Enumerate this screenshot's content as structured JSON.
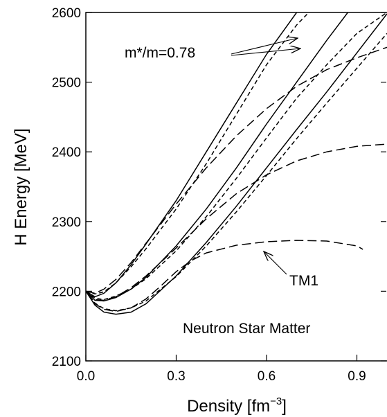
{
  "chart_data": {
    "type": "line",
    "title": "",
    "xlabel": "Density [fm",
    "xlabel_sup": "−3",
    "xlabel_end": "]",
    "ylabel": "H Energy [MeV]",
    "xlim": [
      0.0,
      1.0
    ],
    "ylim": [
      2100,
      2600
    ],
    "xticks": [
      "0.0",
      "0.3",
      "0.6",
      "0.9"
    ],
    "xtick_values": [
      0.0,
      0.3,
      0.6,
      0.9
    ],
    "yticks": [
      "2100",
      "2200",
      "2300",
      "2400",
      "2500",
      "2600"
    ],
    "ytick_values": [
      2100,
      2200,
      2300,
      2400,
      2500,
      2600
    ],
    "grid": false,
    "annotations": {
      "mstar": "m*/m=0.78",
      "tm1": "TM1",
      "matter": "Neutron Star Matter"
    },
    "series": [
      {
        "style": "solid",
        "x": [
          0.0,
          0.03,
          0.06,
          0.1,
          0.15,
          0.2,
          0.3,
          0.4,
          0.5,
          0.6,
          0.7
        ],
        "y": [
          2200,
          2192,
          2197,
          2212,
          2238,
          2268,
          2330,
          2400,
          2470,
          2540,
          2600
        ]
      },
      {
        "style": "solid",
        "x": [
          0.0,
          0.03,
          0.06,
          0.1,
          0.15,
          0.2,
          0.3,
          0.4,
          0.5,
          0.6,
          0.7,
          0.8,
          0.87
        ],
        "y": [
          2200,
          2187,
          2186,
          2191,
          2203,
          2220,
          2265,
          2318,
          2377,
          2440,
          2500,
          2560,
          2600
        ]
      },
      {
        "style": "solid",
        "x": [
          0.0,
          0.03,
          0.06,
          0.1,
          0.15,
          0.2,
          0.3,
          0.4,
          0.5,
          0.6,
          0.7,
          0.8,
          0.9,
          1.0
        ],
        "y": [
          2200,
          2180,
          2170,
          2167,
          2170,
          2182,
          2222,
          2270,
          2322,
          2377,
          2432,
          2486,
          2542,
          2598
        ]
      },
      {
        "style": "short-dash",
        "x": [
          0.0,
          0.03,
          0.06,
          0.1,
          0.15,
          0.2,
          0.3,
          0.4,
          0.5,
          0.6,
          0.7,
          0.74
        ],
        "y": [
          2200,
          2196,
          2199,
          2212,
          2235,
          2261,
          2318,
          2383,
          2454,
          2525,
          2582,
          2600
        ]
      },
      {
        "style": "short-dash",
        "x": [
          0.0,
          0.03,
          0.06,
          0.1,
          0.15,
          0.2,
          0.3,
          0.4,
          0.5,
          0.6,
          0.7,
          0.8,
          0.9,
          1.0
        ],
        "y": [
          2200,
          2190,
          2188,
          2193,
          2203,
          2218,
          2258,
          2307,
          2362,
          2420,
          2477,
          2525,
          2570,
          2600
        ]
      },
      {
        "style": "short-dash",
        "x": [
          0.0,
          0.03,
          0.06,
          0.1,
          0.15,
          0.2,
          0.3,
          0.4,
          0.5,
          0.6,
          0.7,
          0.8,
          0.9,
          1.0
        ],
        "y": [
          2200,
          2183,
          2175,
          2172,
          2176,
          2186,
          2221,
          2265,
          2314,
          2366,
          2419,
          2470,
          2520,
          2570
        ]
      },
      {
        "style": "long-dash",
        "x": [
          0.0,
          0.03,
          0.06,
          0.1,
          0.15,
          0.2,
          0.3,
          0.4,
          0.5,
          0.6,
          0.7,
          0.8,
          0.9,
          1.0
        ],
        "y": [
          2200,
          2197,
          2203,
          2217,
          2241,
          2269,
          2325,
          2377,
          2423,
          2462,
          2494,
          2518,
          2535,
          2550
        ]
      },
      {
        "style": "long-dash",
        "x": [
          0.0,
          0.03,
          0.06,
          0.1,
          0.15,
          0.2,
          0.3,
          0.4,
          0.5,
          0.6,
          0.7,
          0.8,
          0.9,
          1.0
        ],
        "y": [
          2200,
          2188,
          2187,
          2192,
          2205,
          2222,
          2262,
          2304,
          2340,
          2367,
          2387,
          2400,
          2408,
          2411
        ]
      },
      {
        "style": "long-dash",
        "x": [
          0.0,
          0.03,
          0.06,
          0.1,
          0.15,
          0.2,
          0.25,
          0.3,
          0.35,
          0.4,
          0.5,
          0.6,
          0.7,
          0.8,
          0.9,
          0.92
        ],
        "y": [
          2200,
          2182,
          2174,
          2171,
          2176,
          2189,
          2208,
          2228,
          2244,
          2255,
          2266,
          2271,
          2273,
          2272,
          2265,
          2260
        ]
      }
    ]
  }
}
